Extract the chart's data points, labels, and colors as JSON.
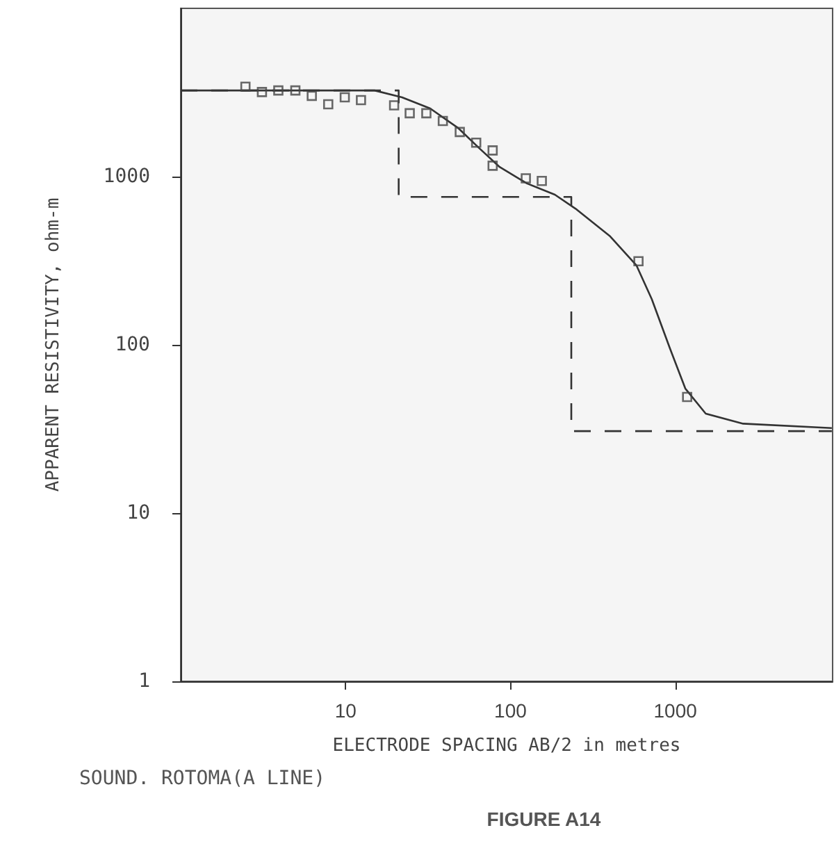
{
  "chart_data": {
    "type": "scatter",
    "xlabel": "ELECTRODE SPACING AB/2 in metres",
    "ylabel": "APPARENT RESISTIVITY, ohm-m",
    "annotations": [
      "SOUND. ROTOMA(A LINE)",
      "FIGURE A14"
    ],
    "log": "xy",
    "grid": false,
    "xlim": [
      1,
      9000
    ],
    "xticks": [
      10,
      100,
      1000
    ],
    "ylim": [
      1,
      10000
    ],
    "yticks": [
      1,
      10,
      100,
      1000
    ],
    "series": [
      {
        "marker": "square",
        "color": "#444444",
        "x": [
          2.47,
          3.11,
          3.91,
          4.96,
          6.24,
          7.85,
          9.89,
          12.4,
          19.7,
          24.5,
          30.9,
          38.9,
          49.3,
          62,
          78,
          78,
          124,
          155,
          598,
          1180
        ],
        "values": [
          3420,
          3180,
          3250,
          3250,
          3020,
          2690,
          2960,
          2850,
          2650,
          2380,
          2380,
          2140,
          1840,
          1590,
          1430,
          1160,
          977,
          942,
          314,
          49
        ]
      },
      {
        "type": "line",
        "marker": "none",
        "line_style": "solid",
        "color": "#333333",
        "x": [
          1,
          15,
          22,
          32.6,
          48,
          64,
          86,
          126,
          186,
          248,
          403,
          582,
          720,
          925,
          1150,
          1530,
          2580,
          8900
        ],
        "values": [
          3250,
          3250,
          2960,
          2540,
          1950,
          1490,
          1140,
          910,
          781,
          645,
          441,
          296,
          187,
          96,
          55,
          39,
          34,
          32
        ]
      },
      {
        "type": "step",
        "marker": "none",
        "line_style": "dashed",
        "color": "#333333",
        "x": [
          1,
          21,
          234,
          8900
        ],
        "values": [
          3250,
          757,
          30.7,
          30.7
        ]
      }
    ]
  }
}
